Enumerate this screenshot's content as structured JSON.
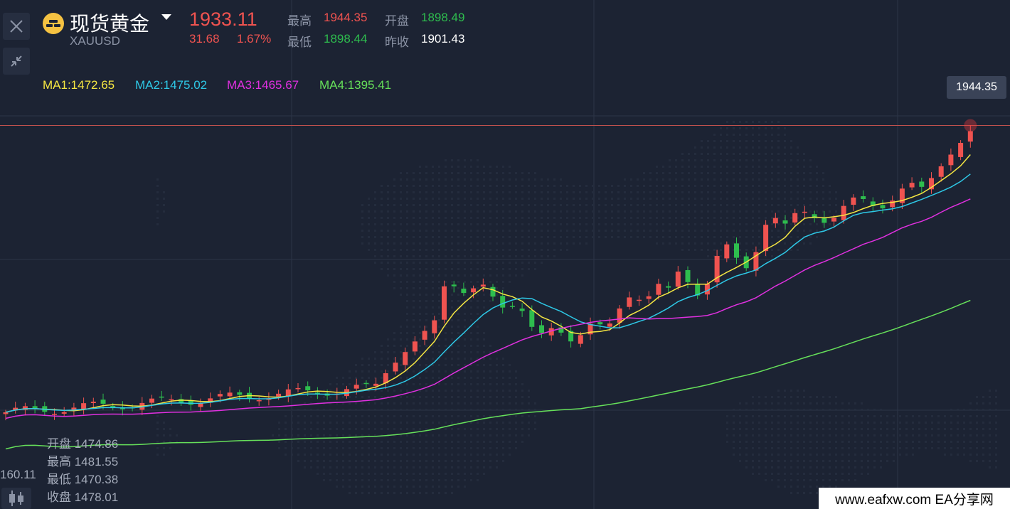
{
  "header": {
    "title": "现货黄金",
    "symbol": "XAUUSD",
    "price": "1933.11",
    "change": "31.68",
    "change_pct": "1.67%",
    "high_label": "最高",
    "high": "1944.35",
    "low_label": "最低",
    "low": "1898.44",
    "open_label": "开盘",
    "open": "1898.49",
    "prev_close_label": "昨收",
    "prev_close": "1901.43"
  },
  "ma": {
    "ma1": "MA1:1472.65",
    "ma2": "MA2:1475.02",
    "ma3": "MA3:1465.67",
    "ma4": "MA4:1395.41"
  },
  "price_tag": "1944.35",
  "ohlc": {
    "open": "开盘 1474.86",
    "high": "最高 1481.55",
    "low": "最低 1470.38",
    "close": "收盘 1478.01"
  },
  "axis_label": "160.11",
  "footer": "www.eafxw.com   EA分享网",
  "icons": {
    "close": "close-icon",
    "collapse": "collapse-icon",
    "gold": "gold-bars-icon",
    "candles": "candlestick-icon"
  },
  "colors": {
    "background": "#1c2333",
    "up": "#ef5350",
    "down": "#2ebd4e",
    "ma1": "#f5e642",
    "ma2": "#2ec8e6",
    "ma3": "#e030e0",
    "ma4": "#66e05a"
  },
  "chart_data": {
    "type": "candlestick",
    "price_range": [
      1440,
      1960
    ],
    "last_high_line": 1944.35,
    "ma_series": [
      {
        "name": "MA1",
        "values": [
          1472.65
        ]
      },
      {
        "name": "MA2",
        "values": [
          1475.02
        ]
      },
      {
        "name": "MA3",
        "values": [
          1465.67
        ]
      },
      {
        "name": "MA4",
        "values": [
          1395.41
        ]
      }
    ]
  }
}
